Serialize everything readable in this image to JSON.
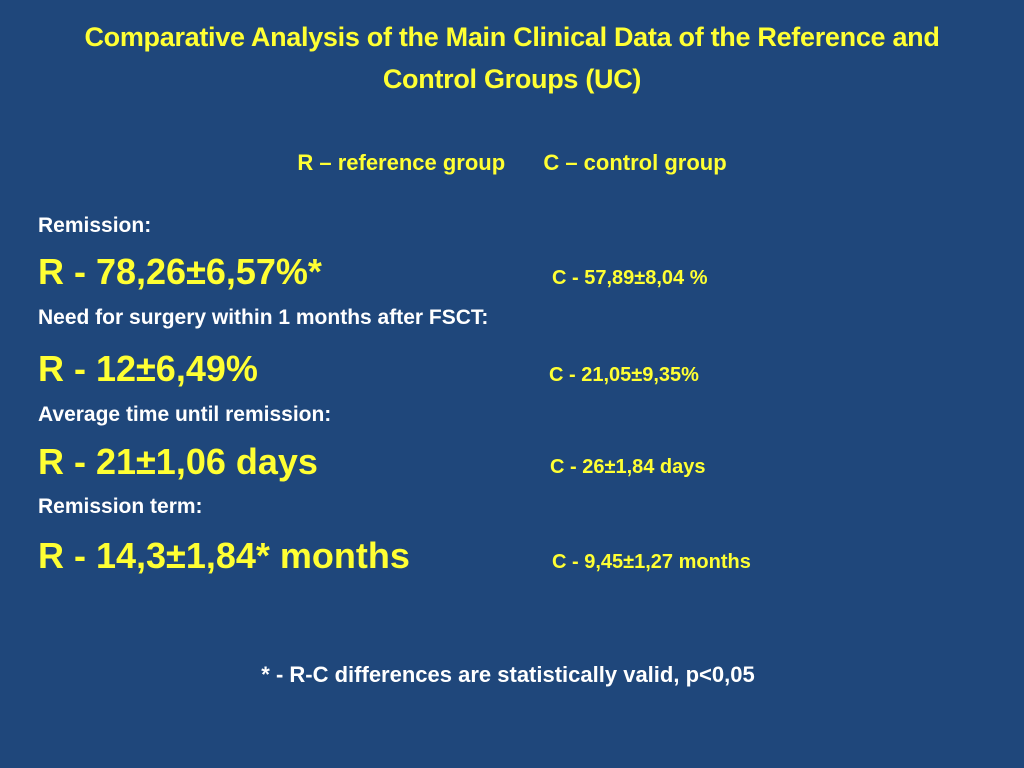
{
  "title": {
    "line1": "Comparative Analysis of the Main Clinical Data of the Reference and",
    "line2": "Control Groups (UC)"
  },
  "legend": {
    "reference": "R – reference group",
    "control": "C – control group"
  },
  "rows": [
    {
      "label": "Remission:",
      "r": "R  - 78,26±6,57%*",
      "c": "C - 57,89±8,04 %"
    },
    {
      "label": "Need for surgery within 1 months after FSCT:",
      "r": "R - 12±6,49%",
      "c": "C - 21,05±9,35%"
    },
    {
      "label": "Average time until remission:",
      "r": "R - 21±1,06 days",
      "c": "C - 26±1,84  days"
    },
    {
      "label": "Remission term:",
      "r": "R - 14,3±1,84* months",
      "c": "C - 9,45±1,27 months"
    }
  ],
  "footnote": "* - R-C differences are statistically valid, p<0,05"
}
